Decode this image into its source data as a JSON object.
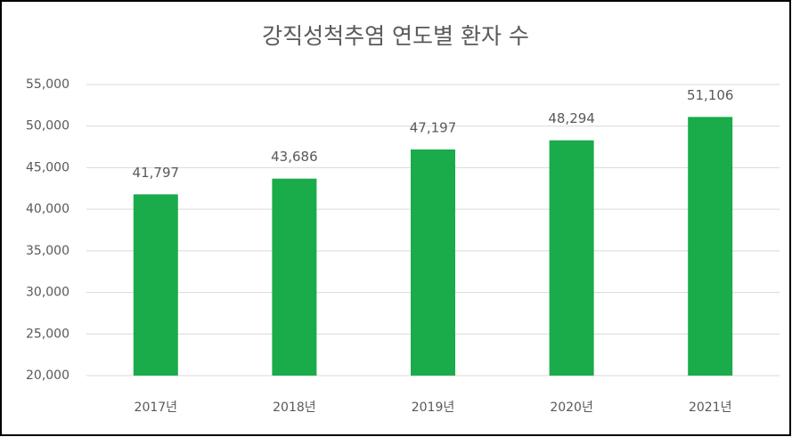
{
  "chart_data": {
    "type": "bar",
    "title": "강직성척추염 연도별 환자 수",
    "categories": [
      "2017년",
      "2018년",
      "2019년",
      "2020년",
      "2021년"
    ],
    "values": [
      41797,
      43686,
      47197,
      48294,
      51106
    ],
    "value_labels": [
      "41,797",
      "43,686",
      "47,197",
      "48,294",
      "51,106"
    ],
    "color": "#1aab4a",
    "ylim": [
      20000,
      55000
    ],
    "yticks": [
      {
        "value": 20000,
        "label": "20,000"
      },
      {
        "value": 25000,
        "label": "25,000"
      },
      {
        "value": 30000,
        "label": "30,000"
      },
      {
        "value": 35000,
        "label": "35,000"
      },
      {
        "value": 40000,
        "label": "40,000"
      },
      {
        "value": 45000,
        "label": "45,000"
      },
      {
        "value": 50000,
        "label": "50,000"
      },
      {
        "value": 55000,
        "label": "55,000"
      }
    ],
    "grid": true
  }
}
